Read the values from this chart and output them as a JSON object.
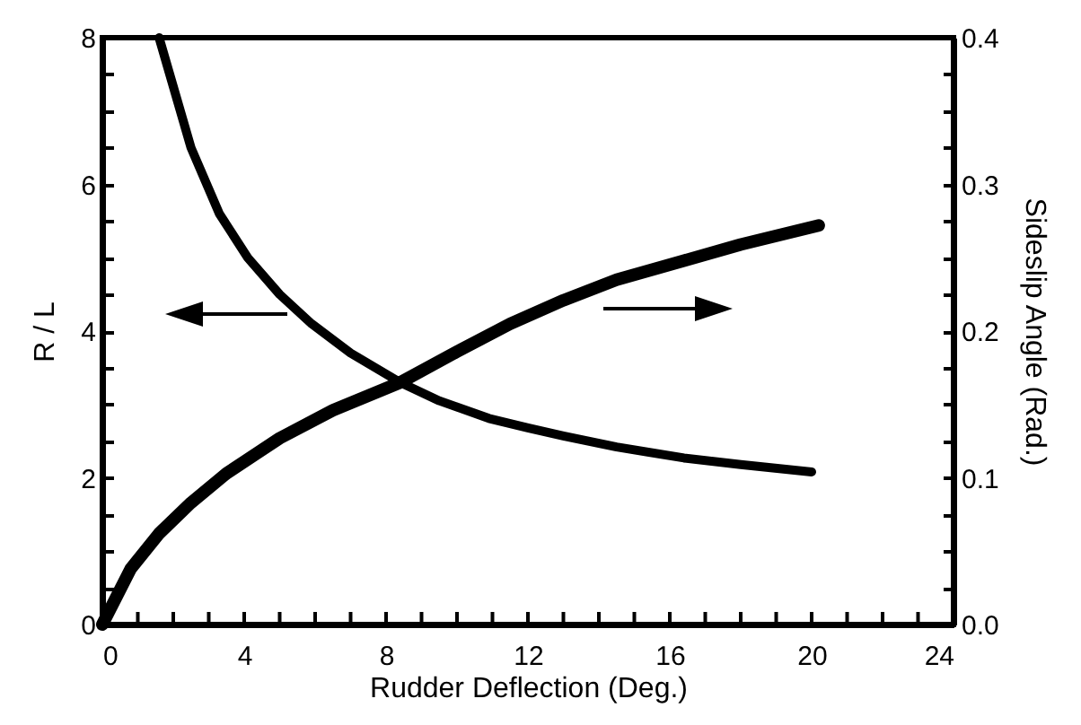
{
  "chart_data": {
    "type": "line",
    "xlabel": "Rudder Deflection (Deg.)",
    "ylabel": "R / L",
    "y2label": "Sideslip Angle (Rad.)",
    "xlim": [
      0,
      24
    ],
    "xticks": [
      0,
      {
        "value": 1,
        "label": null
      },
      {
        "value": 2,
        "label": null
      },
      {
        "value": 3,
        "label": null
      },
      4,
      {
        "value": 5,
        "label": null
      },
      {
        "value": 6,
        "label": null
      },
      {
        "value": 7,
        "label": null
      },
      8,
      {
        "value": 9,
        "label": null
      },
      {
        "value": 10,
        "label": null
      },
      {
        "value": 11,
        "label": null
      },
      12,
      {
        "value": 13,
        "label": null
      },
      {
        "value": 14,
        "label": null
      },
      {
        "value": 15,
        "label": null
      },
      16,
      {
        "value": 17,
        "label": null
      },
      {
        "value": 18,
        "label": null
      },
      {
        "value": 19,
        "label": null
      },
      20,
      {
        "value": 21,
        "label": null
      },
      {
        "value": 22,
        "label": null
      },
      {
        "value": 23,
        "label": null
      },
      24
    ],
    "ylim": [
      0,
      8
    ],
    "yticks": [
      0,
      {
        "value": 0.5,
        "label": null
      },
      {
        "value": 1,
        "label": null
      },
      {
        "value": 1.5,
        "label": null
      },
      2,
      {
        "value": 2.5,
        "label": null
      },
      {
        "value": 3,
        "label": null
      },
      {
        "value": 3.5,
        "label": null
      },
      4,
      {
        "value": 4.5,
        "label": null
      },
      {
        "value": 5,
        "label": null
      },
      {
        "value": 5.5,
        "label": null
      },
      6,
      {
        "value": 6.5,
        "label": null
      },
      {
        "value": 7,
        "label": null
      },
      {
        "value": 7.5,
        "label": null
      },
      8
    ],
    "y2lim": [
      0,
      0.4
    ],
    "y2ticks": [
      {
        "value": 0,
        "label": "0.0"
      },
      {
        "value": 0.025,
        "label": null
      },
      {
        "value": 0.05,
        "label": null
      },
      {
        "value": 0.075,
        "label": null
      },
      0.1,
      {
        "value": 0.125,
        "label": null
      },
      {
        "value": 0.15,
        "label": null
      },
      {
        "value": 0.175,
        "label": null
      },
      0.2,
      {
        "value": 0.225,
        "label": null
      },
      {
        "value": 0.25,
        "label": null
      },
      {
        "value": 0.275,
        "label": null
      },
      0.3,
      {
        "value": 0.325,
        "label": null
      },
      {
        "value": 0.35,
        "label": null
      },
      {
        "value": 0.375,
        "label": null
      },
      0.4
    ],
    "grid": false,
    "marker": "none",
    "line_style": "solid",
    "series": [
      {
        "color": "#000000",
        "x": [
          1.6,
          2.5,
          3.3,
          4.1,
          5.0,
          5.9,
          7.0,
          8.4,
          9.5,
          10.9,
          12.0,
          13.0,
          14.5,
          16.4,
          18.0,
          20.0
        ],
        "values": [
          8.0,
          6.5,
          5.6,
          5.0,
          4.5,
          4.1,
          3.7,
          3.3,
          3.05,
          2.81,
          2.68,
          2.57,
          2.42,
          2.27,
          2.18,
          2.08
        ]
      },
      {
        "color": "#000000",
        "axis": "y2",
        "x": [
          0,
          0.8,
          1.6,
          2.5,
          3.5,
          5.0,
          6.5,
          8.4,
          10.0,
          11.5,
          13.0,
          14.5,
          16.4,
          18.0,
          20.2
        ],
        "values": [
          0,
          0.038,
          0.062,
          0.083,
          0.103,
          0.127,
          0.146,
          0.165,
          0.186,
          0.205,
          0.221,
          0.235,
          0.248,
          0.259,
          0.272
        ]
      }
    ]
  }
}
